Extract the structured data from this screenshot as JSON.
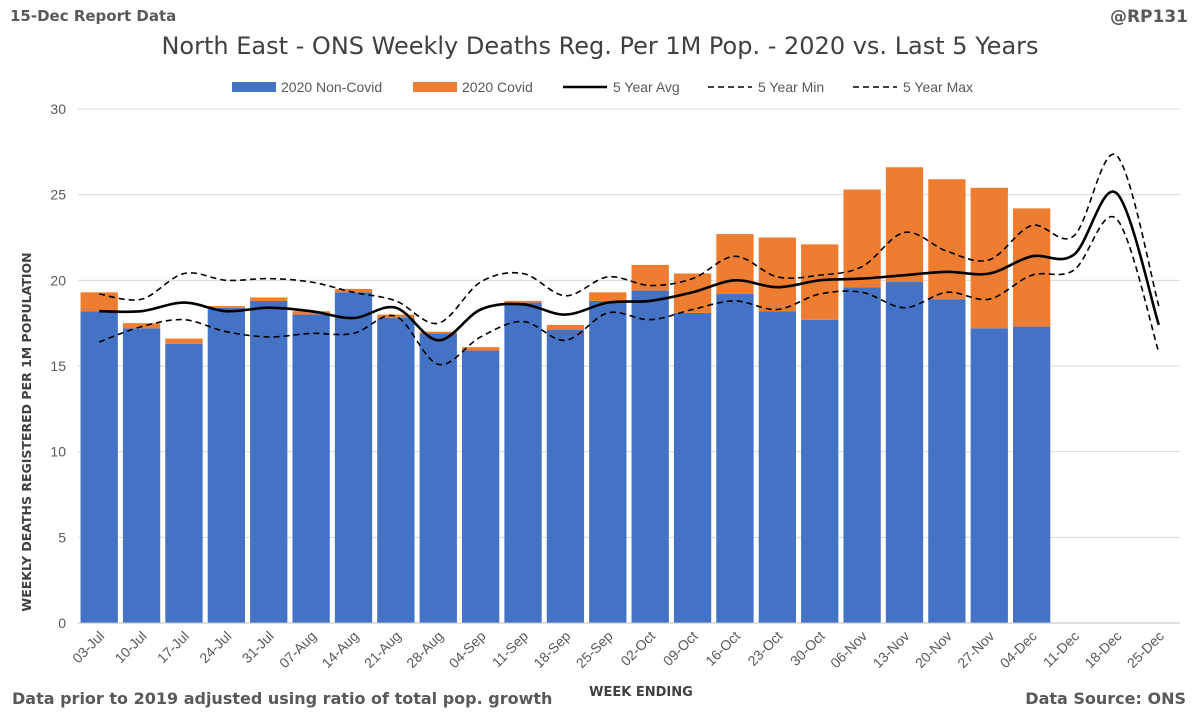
{
  "report_label": "15-Dec Report Data",
  "handle": "@RP131",
  "footnote": "Data prior to 2019 adjusted using ratio of total pop. growth",
  "source": "Data Source: ONS",
  "colors": {
    "non_covid": "#4472C4",
    "covid": "#ED7D31",
    "avg": "#000000",
    "grid": "#D9D9D9",
    "text": "#595959"
  },
  "chart_data": {
    "type": "bar",
    "stacked": true,
    "title": "North East - ONS Weekly Deaths Reg. Per 1M Pop. - 2020 vs. Last 5 Years",
    "xlabel": "WEEK ENDING",
    "ylabel": "WEEKLY DEATHS REGISTERED PER 1M POPULATION",
    "ylim": [
      0,
      30
    ],
    "yticks": [
      0,
      5,
      10,
      15,
      20,
      25,
      30
    ],
    "legend_position": "top",
    "categories": [
      "03-Jul",
      "10-Jul",
      "17-Jul",
      "24-Jul",
      "31-Jul",
      "07-Aug",
      "14-Aug",
      "21-Aug",
      "28-Aug",
      "04-Sep",
      "11-Sep",
      "18-Sep",
      "25-Sep",
      "02-Oct",
      "09-Oct",
      "16-Oct",
      "23-Oct",
      "30-Oct",
      "06-Nov",
      "13-Nov",
      "20-Nov",
      "27-Nov",
      "04-Dec",
      "11-Dec",
      "18-Dec",
      "25-Dec"
    ],
    "series": [
      {
        "name": "2020 Non-Covid",
        "kind": "bar",
        "values": [
          18.2,
          17.2,
          16.3,
          18.4,
          18.8,
          18.0,
          19.3,
          17.8,
          16.9,
          15.9,
          18.7,
          17.1,
          18.8,
          19.4,
          18.1,
          19.2,
          18.2,
          17.7,
          19.6,
          19.9,
          18.9,
          17.2,
          17.3,
          null,
          null,
          null
        ]
      },
      {
        "name": "2020 Covid",
        "kind": "bar",
        "values": [
          1.1,
          0.3,
          0.3,
          0.1,
          0.2,
          0.2,
          0.2,
          0.2,
          0.1,
          0.2,
          0.1,
          0.3,
          0.5,
          1.5,
          2.3,
          3.5,
          4.3,
          4.4,
          5.7,
          6.7,
          7.0,
          8.2,
          6.9,
          null,
          null,
          null
        ]
      },
      {
        "name": "5 Year Avg",
        "kind": "line",
        "style": "solid",
        "values": [
          18.2,
          18.2,
          18.7,
          18.2,
          18.4,
          18.2,
          17.8,
          18.4,
          16.5,
          18.3,
          18.6,
          18.0,
          18.7,
          18.8,
          19.3,
          20.0,
          19.6,
          20.0,
          20.1,
          20.3,
          20.5,
          20.4,
          21.4,
          21.5,
          25.1,
          17.4
        ]
      },
      {
        "name": "5 Year Min",
        "kind": "line",
        "style": "dashed",
        "values": [
          16.4,
          17.3,
          17.7,
          17.0,
          16.7,
          16.9,
          16.9,
          17.9,
          15.1,
          16.7,
          17.6,
          16.5,
          18.1,
          17.7,
          18.3,
          18.8,
          18.3,
          19.2,
          19.3,
          18.4,
          19.3,
          18.9,
          20.3,
          20.6,
          23.6,
          15.8
        ]
      },
      {
        "name": "5 Year Max",
        "kind": "line",
        "style": "dashed",
        "values": [
          19.2,
          18.9,
          20.4,
          20.0,
          20.1,
          19.9,
          19.3,
          18.8,
          17.5,
          19.9,
          20.4,
          19.1,
          20.2,
          19.7,
          20.1,
          21.4,
          20.2,
          20.3,
          20.8,
          22.8,
          21.7,
          21.2,
          23.2,
          22.6,
          27.3,
          18.5
        ]
      }
    ]
  }
}
